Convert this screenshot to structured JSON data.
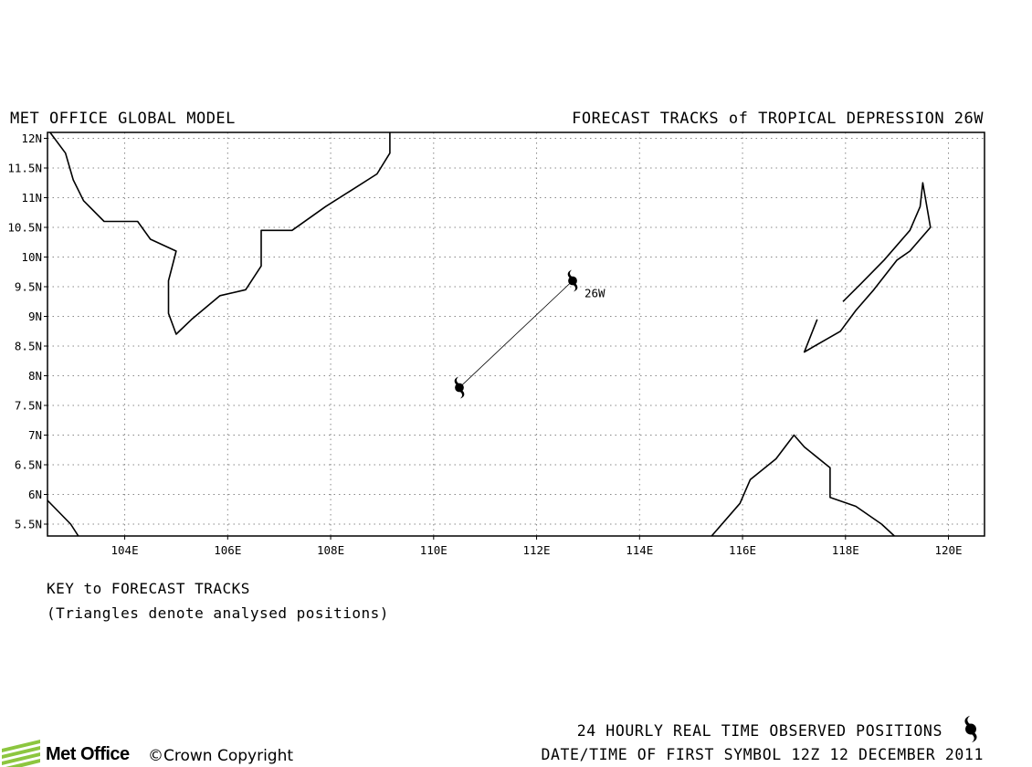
{
  "header": {
    "left_title": "MET OFFICE GLOBAL MODEL",
    "right_title": "FORECAST TRACKS of TROPICAL DEPRESSION 26W"
  },
  "map": {
    "lon_range": [
      102.5,
      120.7
    ],
    "lat_range": [
      5.3,
      12.1
    ],
    "lat_labels": [
      "12N",
      "11.5N",
      "11N",
      "10.5N",
      "10N",
      "9.5N",
      "9N",
      "8.5N",
      "8N",
      "7.5N",
      "7N",
      "6.5N",
      "6N",
      "5.5N"
    ],
    "lat_values": [
      12,
      11.5,
      11,
      10.5,
      10,
      9.5,
      9,
      8.5,
      8,
      7.5,
      7,
      6.5,
      6,
      5.5
    ],
    "lon_labels": [
      "104E",
      "106E",
      "108E",
      "110E",
      "112E",
      "114E",
      "116E",
      "118E",
      "120E"
    ],
    "lon_values": [
      104,
      106,
      108,
      110,
      112,
      114,
      116,
      118,
      120
    ],
    "grid": "dotted",
    "coastlines": [
      [
        [
          102.55,
          12.1
        ],
        [
          102.85,
          11.75
        ],
        [
          103.0,
          11.3
        ],
        [
          103.2,
          10.95
        ],
        [
          103.6,
          10.6
        ],
        [
          104.25,
          10.6
        ],
        [
          104.5,
          10.3
        ],
        [
          105.0,
          10.1
        ],
        [
          104.85,
          9.6
        ],
        [
          104.85,
          9.05
        ],
        [
          105.0,
          8.7
        ],
        [
          105.3,
          8.95
        ],
        [
          105.85,
          9.35
        ],
        [
          106.35,
          9.45
        ],
        [
          106.65,
          9.85
        ],
        [
          106.65,
          10.45
        ],
        [
          107.25,
          10.45
        ],
        [
          107.9,
          10.85
        ],
        [
          108.45,
          11.15
        ],
        [
          108.9,
          11.4
        ],
        [
          109.15,
          11.75
        ],
        [
          109.15,
          12.1
        ]
      ],
      [
        [
          102.5,
          5.9
        ],
        [
          102.95,
          5.5
        ],
        [
          103.1,
          5.3
        ]
      ],
      [
        [
          115.4,
          5.3
        ],
        [
          115.95,
          5.85
        ],
        [
          116.15,
          6.25
        ],
        [
          116.65,
          6.6
        ],
        [
          117.0,
          7.0
        ],
        [
          117.2,
          6.8
        ],
        [
          117.7,
          6.45
        ],
        [
          117.7,
          5.95
        ],
        [
          118.2,
          5.8
        ],
        [
          118.7,
          5.5
        ],
        [
          118.95,
          5.3
        ]
      ],
      [
        [
          117.95,
          9.25
        ],
        [
          118.3,
          9.55
        ],
        [
          118.75,
          9.95
        ],
        [
          119.25,
          10.45
        ],
        [
          119.45,
          10.85
        ],
        [
          119.5,
          11.25
        ],
        [
          119.65,
          10.5
        ],
        [
          119.25,
          10.1
        ],
        [
          119.0,
          9.95
        ],
        [
          118.55,
          9.45
        ],
        [
          118.2,
          9.1
        ],
        [
          117.9,
          8.75
        ],
        [
          117.2,
          8.4
        ],
        [
          117.45,
          8.95
        ]
      ]
    ]
  },
  "storm": {
    "name": "26W",
    "track": [
      [
        110.5,
        7.8
      ],
      [
        112.7,
        9.6
      ]
    ],
    "analysed_positions": 0
  },
  "key": {
    "title": "KEY to FORECAST TRACKS",
    "note": "(Triangles denote analysed positions)"
  },
  "footer": {
    "brand": "Met Office",
    "copyright": "©Crown Copyright",
    "observed_label": "24 HOURLY REAL TIME OBSERVED POSITIONS",
    "datetime_label": "DATE/TIME OF FIRST SYMBOL 12Z 12 DECEMBER 2011"
  },
  "colors": {
    "logo_green": "#8cc63f",
    "ink": "#000000",
    "grid": "#888888"
  },
  "icons": {
    "storm_symbol": "tropical-cyclone-icon",
    "logo": "met-office-logo-icon"
  }
}
